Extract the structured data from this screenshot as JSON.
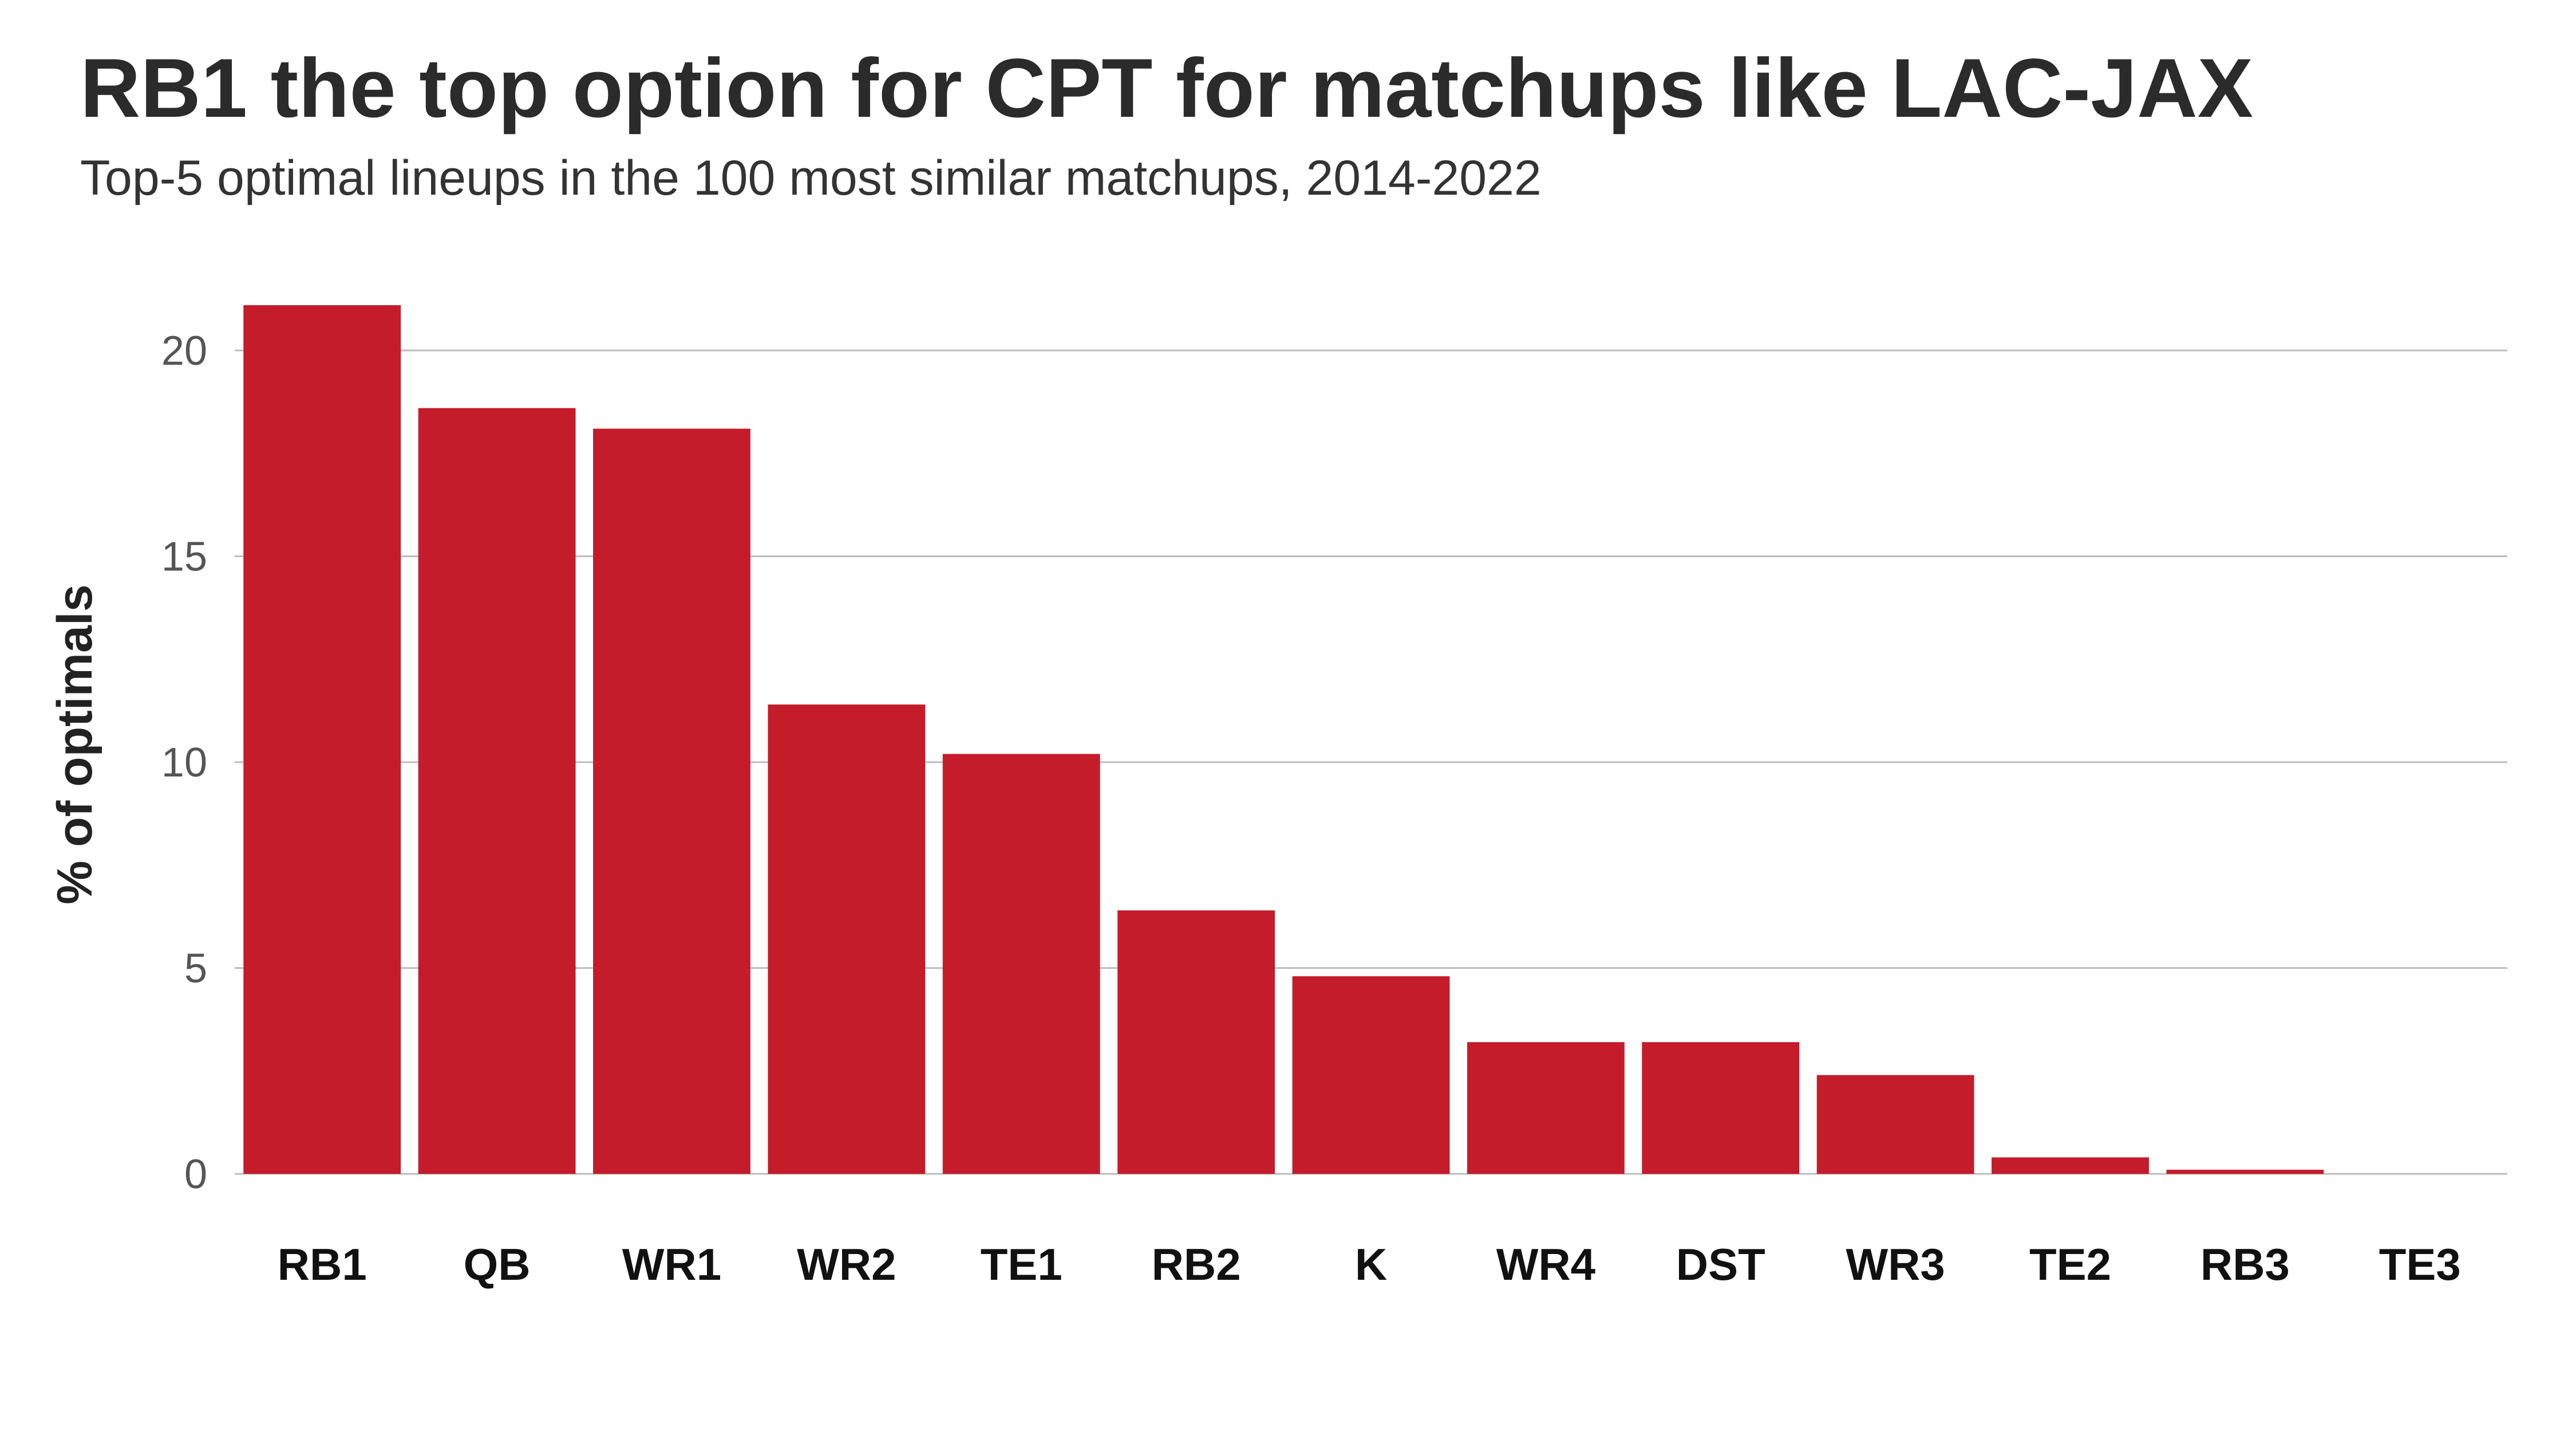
{
  "chart_data": {
    "type": "bar",
    "title": "RB1 the top option for CPT for matchups like LAC-JAX",
    "subtitle": "Top-5 optimal lineups in the 100 most similar matchups, 2014-2022",
    "xlabel": "",
    "ylabel": "% of optimals",
    "categories": [
      "RB1",
      "QB",
      "WR1",
      "WR2",
      "TE1",
      "RB2",
      "K",
      "WR4",
      "DST",
      "WR3",
      "TE2",
      "RB3",
      "TE3"
    ],
    "values": [
      21.1,
      18.6,
      18.1,
      11.4,
      10.2,
      6.4,
      4.8,
      3.2,
      3.2,
      2.4,
      0.4,
      0.1,
      0
    ],
    "yticks": [
      0,
      5,
      10,
      15,
      20
    ],
    "ylim": [
      0,
      21.1
    ],
    "grid": "horizontal",
    "bar_color": "#c41c2b",
    "grid_color": "#bdbdbd"
  }
}
